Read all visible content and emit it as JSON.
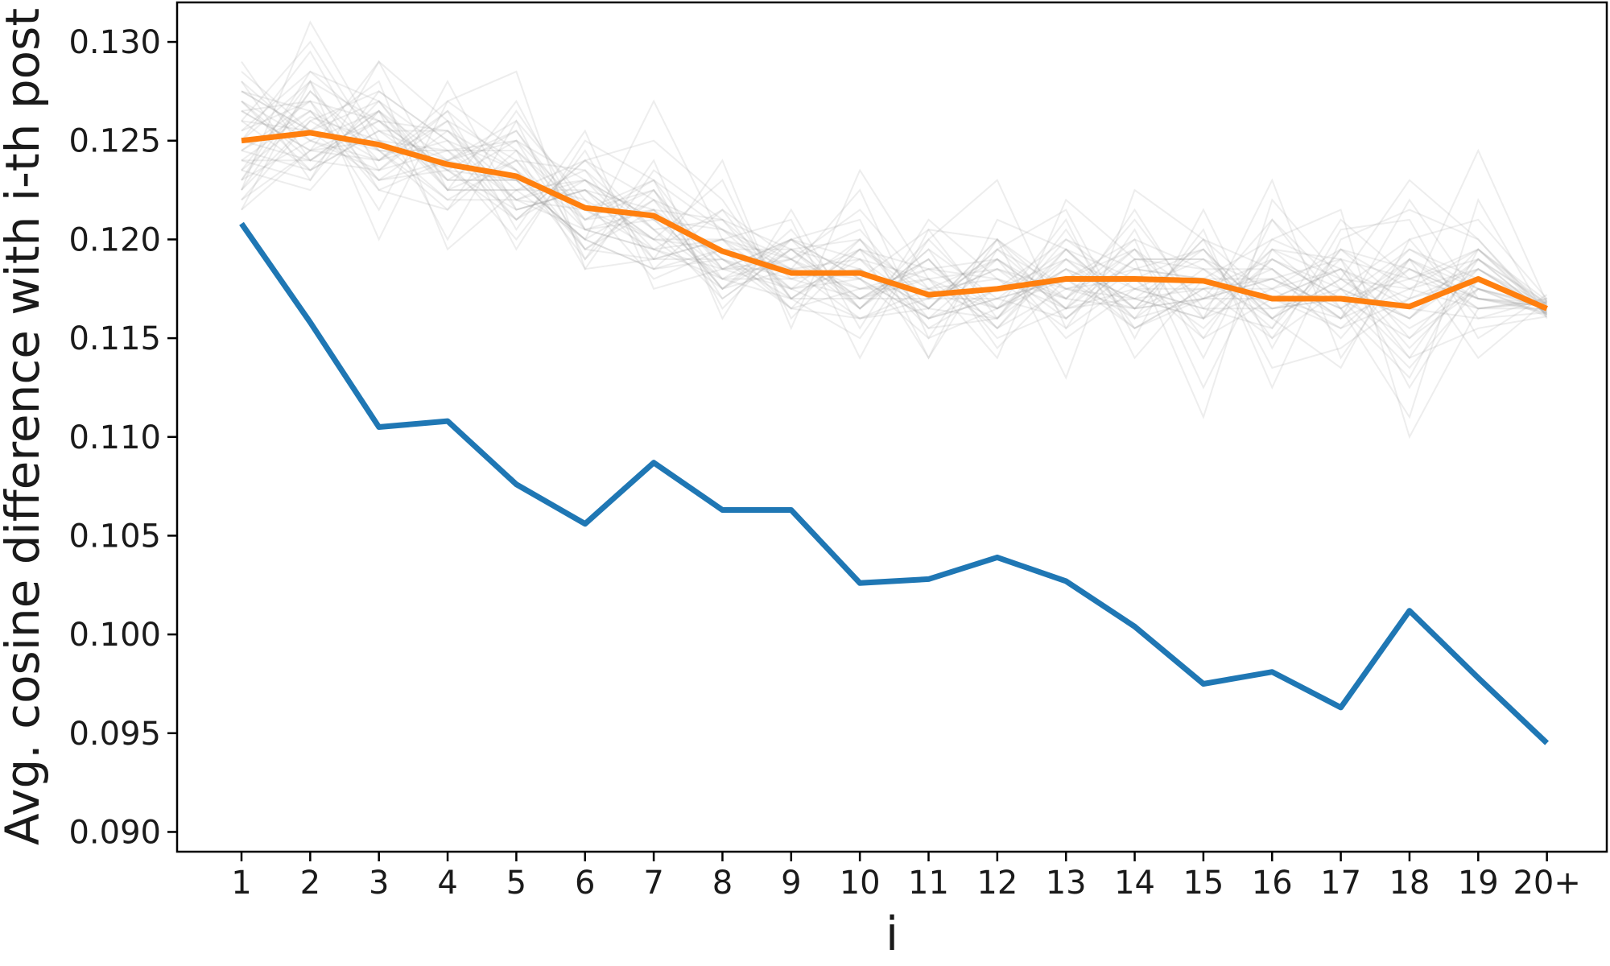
{
  "chart_data": {
    "type": "line",
    "title": "",
    "xlabel": "i",
    "ylabel": "Avg. cosine difference with i-th post",
    "x": [
      "1",
      "2",
      "3",
      "4",
      "5",
      "6",
      "7",
      "8",
      "9",
      "10",
      "11",
      "12",
      "13",
      "14",
      "15",
      "16",
      "17",
      "18",
      "19",
      "20+"
    ],
    "ylim": [
      0.089,
      0.132
    ],
    "yticks": [
      "0.090",
      "0.095",
      "0.100",
      "0.105",
      "0.110",
      "0.115",
      "0.120",
      "0.125",
      "0.130"
    ],
    "grid": false,
    "legend": "none",
    "series": [
      {
        "color": "#1f77b4",
        "values": [
          0.1208,
          0.1158,
          0.1105,
          0.1108,
          0.1076,
          0.1056,
          0.1087,
          0.1063,
          0.1063,
          0.1026,
          0.1028,
          0.1039,
          0.1027,
          0.1004,
          0.0975,
          0.0981,
          0.0963,
          0.1012,
          0.0978,
          0.0945
        ]
      },
      {
        "color": "#ff7f0e",
        "values": [
          0.125,
          0.1254,
          0.1248,
          0.1238,
          0.1232,
          0.1216,
          0.1212,
          0.1194,
          0.1183,
          0.1183,
          0.1172,
          0.1175,
          0.118,
          0.118,
          0.1179,
          0.117,
          0.117,
          0.1166,
          0.118,
          0.1165
        ]
      }
    ],
    "background_series": {
      "color": "#999999",
      "count": 40,
      "values": [
        [
          0.1235,
          0.1262,
          0.125,
          0.1245,
          0.122,
          0.1205,
          0.1195,
          0.118,
          0.117,
          0.119,
          0.1165,
          0.116,
          0.1185,
          0.117,
          0.1195,
          0.115,
          0.1175,
          0.116,
          0.1185,
          0.1163
        ],
        [
          0.127,
          0.124,
          0.1265,
          0.123,
          0.125,
          0.123,
          0.1205,
          0.121,
          0.1195,
          0.117,
          0.1185,
          0.1165,
          0.119,
          0.116,
          0.117,
          0.1185,
          0.115,
          0.119,
          0.117,
          0.1168
        ],
        [
          0.1225,
          0.1275,
          0.124,
          0.125,
          0.1235,
          0.121,
          0.123,
          0.1185,
          0.1175,
          0.12,
          0.116,
          0.119,
          0.1165,
          0.1195,
          0.116,
          0.1175,
          0.1185,
          0.114,
          0.119,
          0.1162
        ],
        [
          0.128,
          0.125,
          0.1235,
          0.126,
          0.1215,
          0.1225,
          0.119,
          0.12,
          0.119,
          0.1165,
          0.1195,
          0.117,
          0.116,
          0.1185,
          0.118,
          0.116,
          0.118,
          0.1175,
          0.1165,
          0.117
        ],
        [
          0.1245,
          0.1235,
          0.127,
          0.1225,
          0.124,
          0.1195,
          0.1215,
          0.1175,
          0.12,
          0.118,
          0.115,
          0.12,
          0.1175,
          0.1165,
          0.12,
          0.117,
          0.116,
          0.1195,
          0.118,
          0.1164
        ],
        [
          0.123,
          0.1285,
          0.1255,
          0.124,
          0.126,
          0.122,
          0.12,
          0.1195,
          0.1165,
          0.1175,
          0.118,
          0.1155,
          0.1195,
          0.118,
          0.1155,
          0.119,
          0.117,
          0.115,
          0.1175,
          0.1161
        ],
        [
          0.126,
          0.1255,
          0.123,
          0.1255,
          0.1225,
          0.124,
          0.122,
          0.1205,
          0.1185,
          0.116,
          0.117,
          0.1185,
          0.117,
          0.12,
          0.1185,
          0.1155,
          0.1195,
          0.1185,
          0.117,
          0.1166
        ],
        [
          0.1215,
          0.1245,
          0.126,
          0.1235,
          0.123,
          0.12,
          0.1185,
          0.119,
          0.118,
          0.1195,
          0.1175,
          0.1165,
          0.118,
          0.1155,
          0.1175,
          0.118,
          0.1165,
          0.113,
          0.1195,
          0.1169
        ],
        [
          0.1275,
          0.1265,
          0.1245,
          0.1215,
          0.1245,
          0.1215,
          0.1225,
          0.117,
          0.1195,
          0.1185,
          0.116,
          0.1175,
          0.12,
          0.1175,
          0.1165,
          0.1165,
          0.1175,
          0.12,
          0.116,
          0.1163
        ],
        [
          0.124,
          0.123,
          0.1275,
          0.125,
          0.121,
          0.123,
          0.1195,
          0.1215,
          0.117,
          0.117,
          0.119,
          0.115,
          0.1165,
          0.119,
          0.119,
          0.1175,
          0.1155,
          0.117,
          0.1185,
          0.1167
        ],
        [
          0.125,
          0.128,
          0.1225,
          0.124,
          0.1255,
          0.1205,
          0.121,
          0.118,
          0.119,
          0.1205,
          0.1165,
          0.1195,
          0.1175,
          0.117,
          0.116,
          0.1195,
          0.118,
          0.1155,
          0.1175,
          0.1165
        ],
        [
          0.1265,
          0.1245,
          0.125,
          0.122,
          0.122,
          0.1235,
          0.119,
          0.12,
          0.1175,
          0.116,
          0.1175,
          0.118,
          0.1155,
          0.118,
          0.1195,
          0.116,
          0.119,
          0.118,
          0.119,
          0.1162
        ],
        [
          0.122,
          0.126,
          0.124,
          0.1265,
          0.1235,
          0.119,
          0.1225,
          0.1185,
          0.12,
          0.119,
          0.1155,
          0.116,
          0.1195,
          0.1165,
          0.117,
          0.118,
          0.1165,
          0.119,
          0.1165,
          0.1168
        ],
        [
          0.1255,
          0.127,
          0.126,
          0.1235,
          0.1215,
          0.1225,
          0.12,
          0.1175,
          0.1185,
          0.1175,
          0.1185,
          0.119,
          0.117,
          0.1195,
          0.115,
          0.117,
          0.1185,
          0.1145,
          0.118,
          0.1166
        ],
        [
          0.124,
          0.124,
          0.1235,
          0.1245,
          0.1245,
          0.121,
          0.1215,
          0.121,
          0.117,
          0.1195,
          0.117,
          0.117,
          0.118,
          0.116,
          0.1185,
          0.1185,
          0.116,
          0.1175,
          0.1195,
          0.1164
        ],
        [
          0.1285,
          0.1255,
          0.127,
          0.123,
          0.123,
          0.12,
          0.1185,
          0.1195,
          0.1195,
          0.1165,
          0.119,
          0.1155,
          0.119,
          0.1175,
          0.1175,
          0.115,
          0.1195,
          0.1165,
          0.116,
          0.117
        ],
        [
          0.123,
          0.1275,
          0.1245,
          0.122,
          0.124,
          0.1235,
          0.1205,
          0.118,
          0.118,
          0.1185,
          0.1165,
          0.12,
          0.116,
          0.119,
          0.119,
          0.1165,
          0.117,
          0.1195,
          0.1175,
          0.1162
        ],
        [
          0.126,
          0.1235,
          0.1255,
          0.1255,
          0.122,
          0.1215,
          0.123,
          0.1205,
          0.119,
          0.117,
          0.118,
          0.1165,
          0.1185,
          0.117,
          0.116,
          0.119,
          0.1175,
          0.116,
          0.119,
          0.1167
        ],
        [
          0.1245,
          0.1265,
          0.123,
          0.124,
          0.125,
          0.1195,
          0.119,
          0.119,
          0.1165,
          0.12,
          0.117,
          0.1185,
          0.1175,
          0.1185,
          0.118,
          0.117,
          0.1155,
          0.1185,
          0.117,
          0.1163
        ],
        [
          0.127,
          0.125,
          0.1265,
          0.1225,
          0.1225,
          0.123,
          0.121,
          0.1185,
          0.12,
          0.118,
          0.116,
          0.117,
          0.1195,
          0.1165,
          0.117,
          0.118,
          0.119,
          0.115,
          0.1185,
          0.1165
        ],
        [
          0.1225,
          0.131,
          0.125,
          0.1235,
          0.121,
          0.124,
          0.125,
          0.122,
          0.117,
          0.115,
          0.12,
          0.123,
          0.1155,
          0.1205,
          0.114,
          0.121,
          0.1165,
          0.111,
          0.122,
          0.116
        ],
        [
          0.128,
          0.123,
          0.129,
          0.126,
          0.1195,
          0.125,
          0.123,
          0.1165,
          0.12,
          0.121,
          0.114,
          0.1195,
          0.1215,
          0.115,
          0.1215,
          0.1145,
          0.1205,
          0.121,
          0.115,
          0.1172
        ],
        [
          0.1215,
          0.128,
          0.12,
          0.127,
          0.1285,
          0.1185,
          0.119,
          0.124,
          0.1155,
          0.1235,
          0.118,
          0.114,
          0.122,
          0.119,
          0.111,
          0.122,
          0.118,
          0.123,
          0.12,
          0.1161
        ],
        [
          0.1275,
          0.1255,
          0.128,
          0.1195,
          0.1225,
          0.12,
          0.127,
          0.12,
          0.121,
          0.114,
          0.1205,
          0.12,
          0.113,
          0.1225,
          0.12,
          0.1135,
          0.1145,
          0.117,
          0.1245,
          0.1168
        ],
        [
          0.125,
          0.1295,
          0.1235,
          0.1265,
          0.1205,
          0.1255,
          0.1175,
          0.1185,
          0.1185,
          0.1225,
          0.115,
          0.1165,
          0.121,
          0.114,
          0.118,
          0.12,
          0.1215,
          0.11,
          0.1165,
          0.1165
        ],
        [
          0.1235,
          0.1225,
          0.1265,
          0.12,
          0.126,
          0.119,
          0.124,
          0.116,
          0.1215,
          0.1155,
          0.121,
          0.118,
          0.1165,
          0.1215,
          0.116,
          0.123,
          0.114,
          0.119,
          0.114,
          0.1169
        ],
        [
          0.1265,
          0.127,
          0.1215,
          0.128,
          0.1215,
          0.1225,
          0.12,
          0.123,
          0.116,
          0.1195,
          0.114,
          0.121,
          0.1195,
          0.116,
          0.1205,
          0.1125,
          0.12,
          0.1215,
          0.12,
          0.1163
        ],
        [
          0.122,
          0.1245,
          0.129,
          0.1225,
          0.127,
          0.1205,
          0.1215,
          0.1175,
          0.1205,
          0.1165,
          0.1195,
          0.1145,
          0.118,
          0.12,
          0.1125,
          0.1195,
          0.119,
          0.1125,
          0.118,
          0.1166
        ],
        [
          0.126,
          0.13,
          0.1245,
          0.124,
          0.12,
          0.1245,
          0.1185,
          0.1215,
          0.119,
          0.1215,
          0.1175,
          0.119,
          0.115,
          0.1175,
          0.119,
          0.116,
          0.1135,
          0.12,
          0.121,
          0.117
        ],
        [
          0.129,
          0.124,
          0.126,
          0.1255,
          0.1235,
          0.1195,
          0.122,
          0.119,
          0.1175,
          0.118,
          0.1205,
          0.116,
          0.1205,
          0.1155,
          0.117,
          0.121,
          0.1175,
          0.114,
          0.1155,
          0.1161
        ],
        [
          0.124,
          0.1265,
          0.1225,
          0.1215,
          0.1265,
          0.1215,
          0.1195,
          0.12,
          0.1165,
          0.116,
          0.1165,
          0.12,
          0.117,
          0.121,
          0.1165,
          0.1155,
          0.121,
          0.118,
          0.1195,
          0.1167
        ],
        [
          0.1255,
          0.1285,
          0.127,
          0.1245,
          0.121,
          0.124,
          0.1205,
          0.117,
          0.1195,
          0.12,
          0.1155,
          0.1175,
          0.119,
          0.1165,
          0.12,
          0.1185,
          0.116,
          0.122,
          0.117,
          0.1164
        ],
        [
          0.123,
          0.125,
          0.124,
          0.127,
          0.1245,
          0.1185,
          0.1235,
          0.121,
          0.118,
          0.117,
          0.119,
          0.1155,
          0.1175,
          0.118,
          0.115,
          0.12,
          0.1185,
          0.1165,
          0.119,
          0.1168
        ],
        [
          0.127,
          0.1235,
          0.1255,
          0.123,
          0.123,
          0.122,
          0.118,
          0.1195,
          0.1185,
          0.119,
          0.118,
          0.1185,
          0.116,
          0.119,
          0.1185,
          0.1165,
          0.117,
          0.1135,
          0.1175,
          0.1166
        ],
        [
          0.1245,
          0.127,
          0.123,
          0.1235,
          0.1255,
          0.121,
          0.1225,
          0.118,
          0.12,
          0.1165,
          0.12,
          0.1165,
          0.1185,
          0.1155,
          0.1175,
          0.1175,
          0.1195,
          0.1175,
          0.1185,
          0.1163
        ],
        [
          0.1225,
          0.126,
          0.1275,
          0.125,
          0.122,
          0.123,
          0.121,
          0.1205,
          0.1175,
          0.1185,
          0.1165,
          0.1195,
          0.1165,
          0.1175,
          0.1165,
          0.1195,
          0.1165,
          0.1185,
          0.1165,
          0.1169
        ],
        [
          0.1265,
          0.1245,
          0.124,
          0.126,
          0.124,
          0.1205,
          0.1195,
          0.1185,
          0.119,
          0.1175,
          0.1175,
          0.116,
          0.12,
          0.1185,
          0.1195,
          0.116,
          0.118,
          0.116,
          0.1195,
          0.1162
        ],
        [
          0.1235,
          0.128,
          0.126,
          0.1225,
          0.1225,
          0.1225,
          0.1215,
          0.119,
          0.117,
          0.1195,
          0.1185,
          0.118,
          0.117,
          0.1165,
          0.118,
          0.118,
          0.116,
          0.119,
          0.1175,
          0.1167
        ],
        [
          0.1275,
          0.1255,
          0.1245,
          0.1245,
          0.125,
          0.1215,
          0.12,
          0.12,
          0.1185,
          0.118,
          0.116,
          0.117,
          0.118,
          0.1195,
          0.117,
          0.117,
          0.1185,
          0.117,
          0.118,
          0.1165
        ],
        [
          0.125,
          0.124,
          0.1265,
          0.124,
          0.123,
          0.12,
          0.122,
          0.1175,
          0.1195,
          0.117,
          0.117,
          0.119,
          0.1165,
          0.117,
          0.1175,
          0.119,
          0.117,
          0.118,
          0.117,
          0.1166
        ]
      ]
    }
  }
}
